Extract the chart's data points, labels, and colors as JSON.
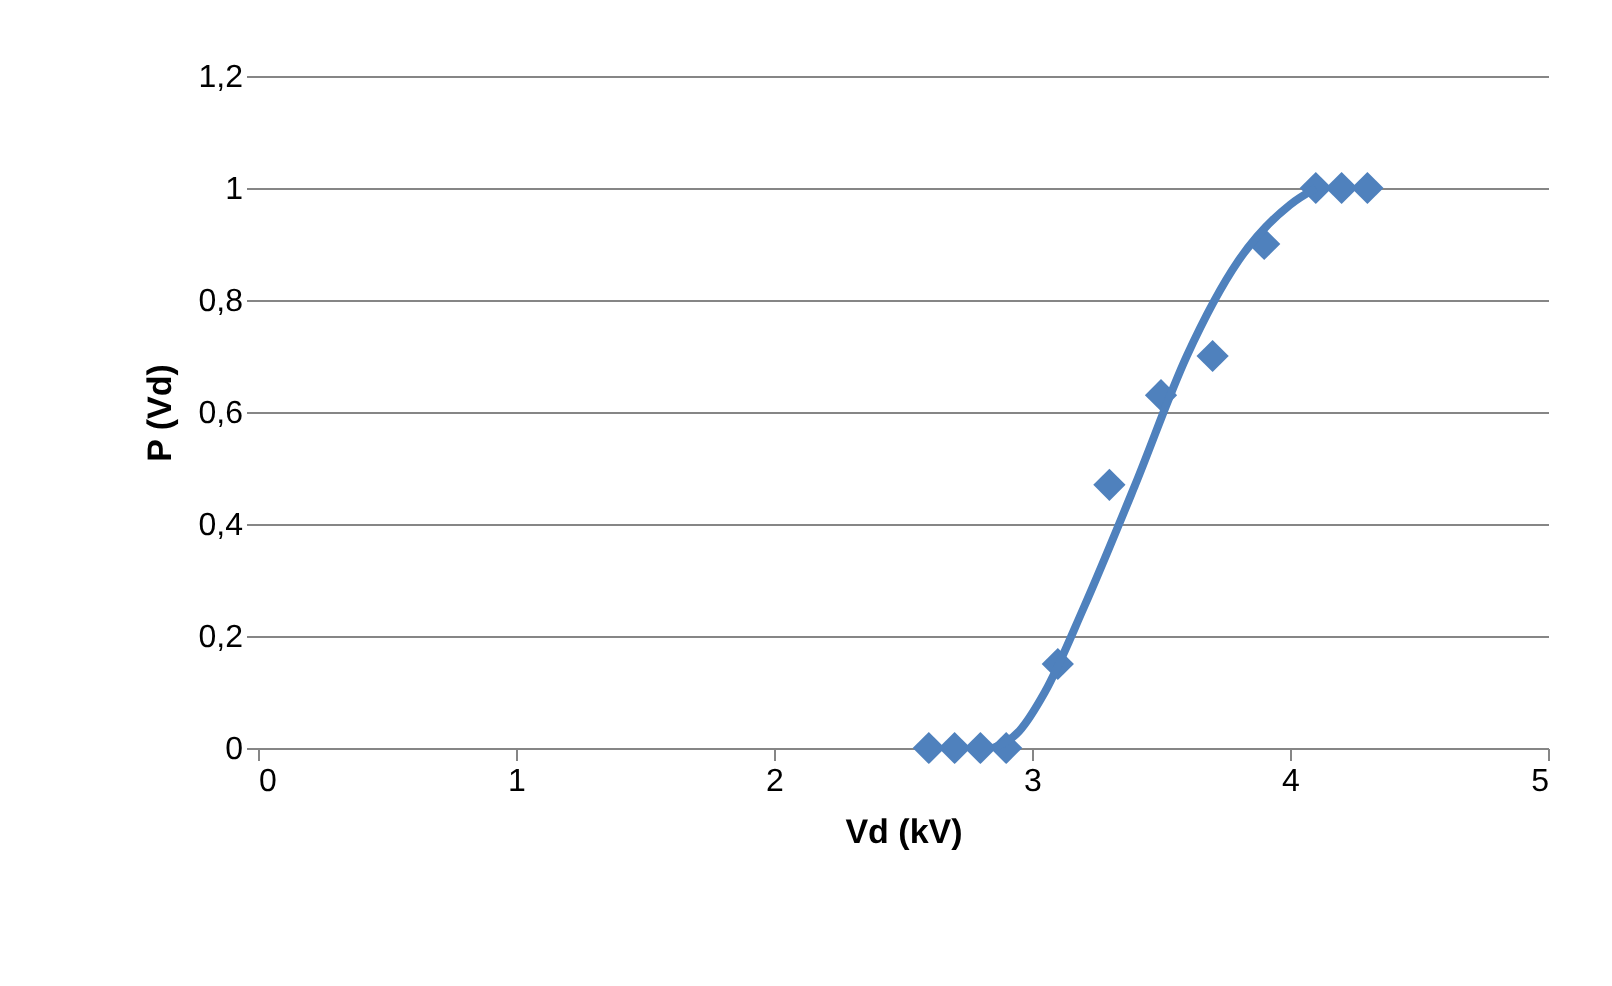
{
  "chart_data": {
    "type": "scatter",
    "xlabel": "Vd (kV)",
    "ylabel": "P (Vd)",
    "xlim": [
      0,
      5
    ],
    "xticks": [
      0,
      1,
      2,
      3,
      4,
      5
    ],
    "ylim": [
      0,
      1.2
    ],
    "yticks": [
      0,
      {
        "value": 0.2,
        "label": "0,2"
      },
      {
        "value": 0.4,
        "label": "0,4"
      },
      {
        "value": 0.6,
        "label": "0,6"
      },
      {
        "value": 0.8,
        "label": "0,8"
      },
      1,
      {
        "value": 1.2,
        "label": "1,2"
      }
    ],
    "grid": "y",
    "series": [
      {
        "type": "scatter",
        "marker": "diamond",
        "color": "#4f81bd",
        "x": [
          2.6,
          2.7,
          2.8,
          2.9,
          3.1,
          3.3,
          3.5,
          3.7,
          3.9,
          4.1,
          4.2,
          4.3
        ],
        "values": [
          0,
          0,
          0,
          0,
          0.15,
          0.47,
          0.63,
          0.7,
          0.9,
          1,
          1,
          1
        ]
      },
      {
        "type": "line",
        "marker": "none",
        "line_style": "solid",
        "color": "#4f81bd",
        "x": [
          2.85,
          2.95,
          3.05,
          3.2,
          3.4,
          3.6,
          3.8,
          4.0,
          4.1
        ],
        "values": [
          0,
          0.03,
          0.1,
          0.25,
          0.47,
          0.7,
          0.87,
          0.97,
          1.0
        ]
      }
    ]
  }
}
